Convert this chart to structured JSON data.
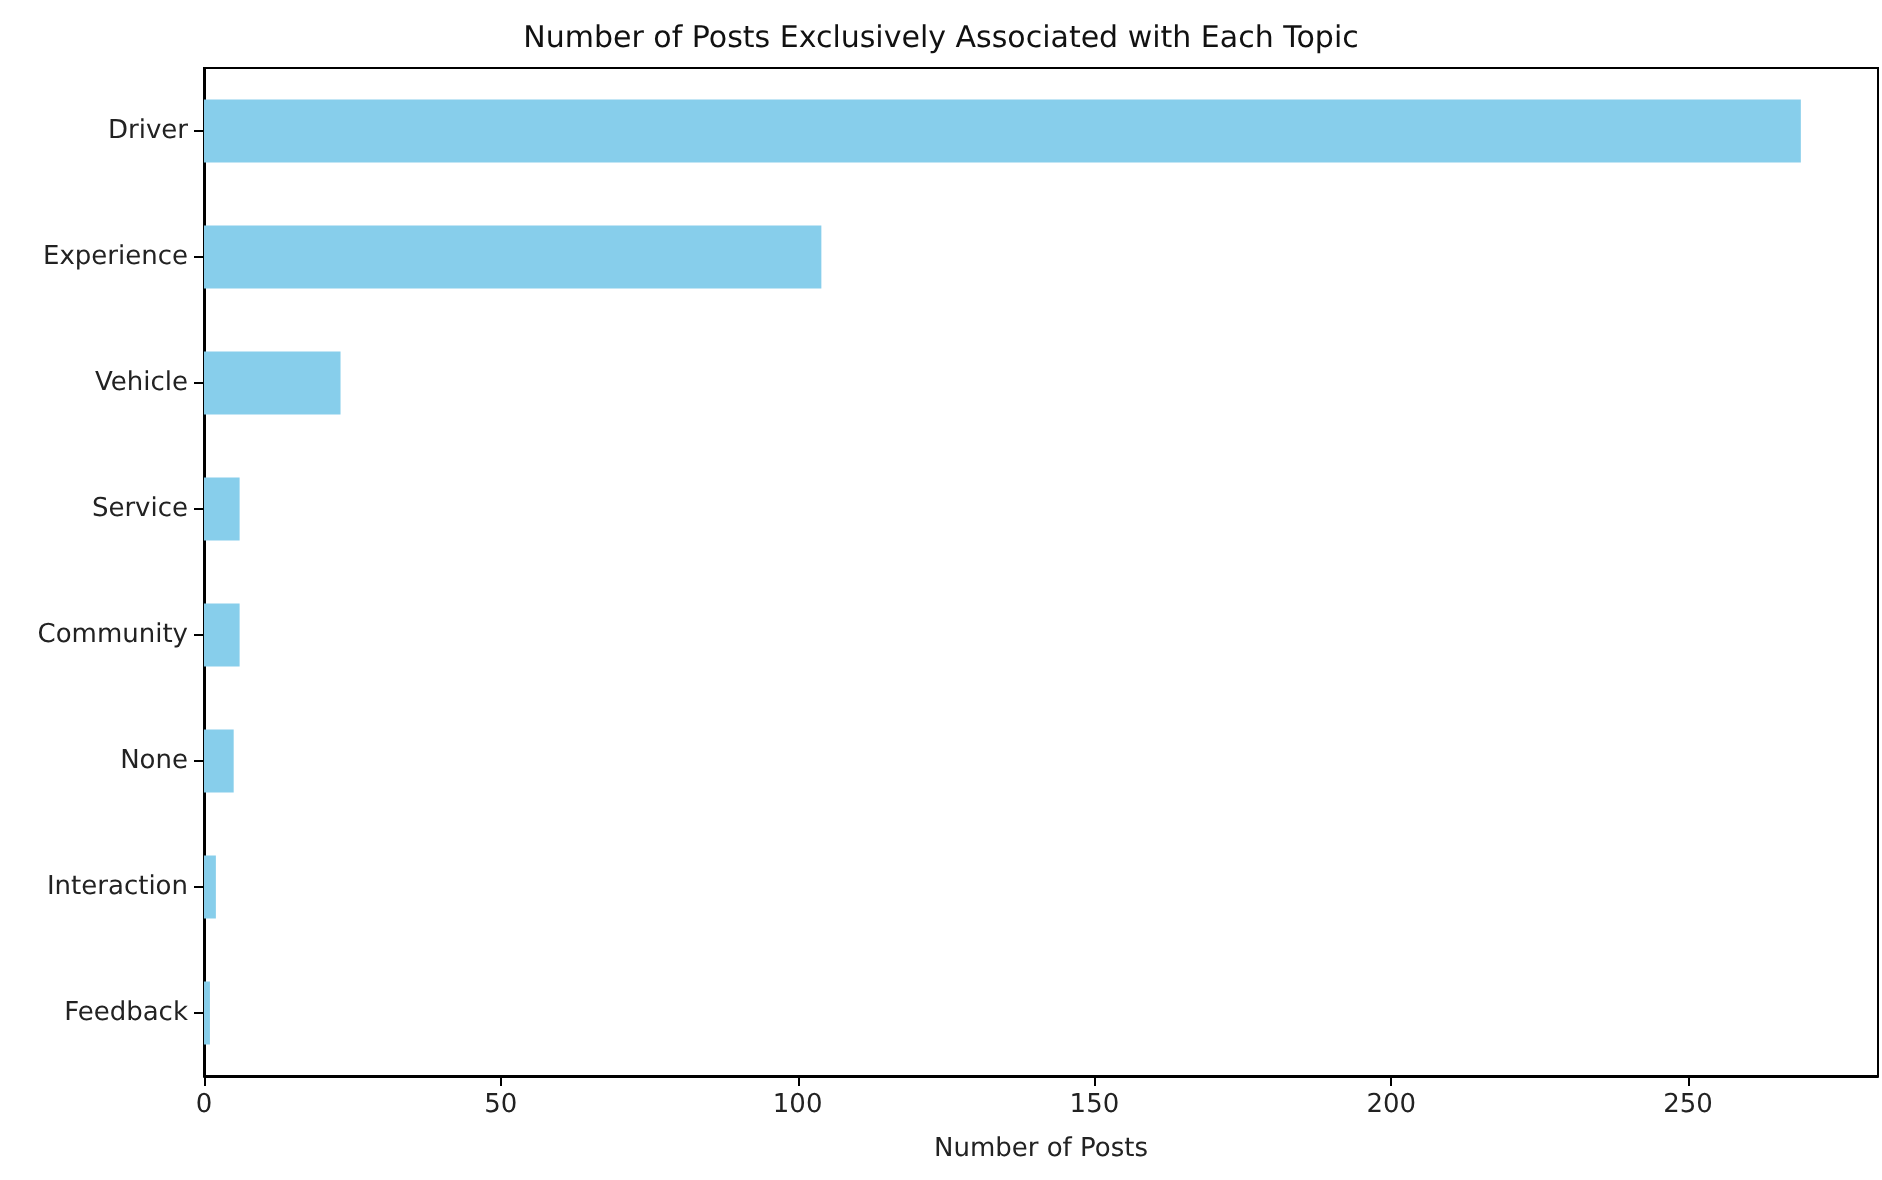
{
  "chart_data": {
    "type": "bar",
    "orientation": "horizontal",
    "title": "Number of Posts Exclusively Associated with Each Topic",
    "xlabel": "Number of Posts",
    "categories": [
      "Driver",
      "Experience",
      "Vehicle",
      "Service",
      "Community",
      "None",
      "Interaction",
      "Feedback"
    ],
    "values": [
      269,
      104,
      23,
      6,
      6,
      5,
      2,
      1
    ],
    "color": "#87ceeb",
    "xlim": [
      0,
      282
    ],
    "xticks": [
      0,
      50,
      100,
      150,
      200,
      250
    ],
    "grid": false
  }
}
